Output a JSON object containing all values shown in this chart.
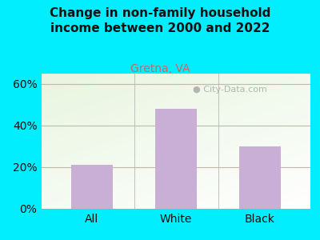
{
  "categories": [
    "All",
    "White",
    "Black"
  ],
  "values": [
    21,
    48,
    30
  ],
  "bar_color": "#c9aed6",
  "title_line1": "Change in non-family household",
  "title_line2": "income between 2000 and 2022",
  "subtitle": "Gretna, VA",
  "subtitle_color": "#cc6666",
  "title_color": "#111111",
  "ylim": [
    0,
    65
  ],
  "yticks": [
    0,
    20,
    40,
    60
  ],
  "ytick_labels": [
    "0%",
    "20%",
    "40%",
    "60%"
  ],
  "outer_bg": "#00eeff",
  "plot_bg_color": "#e8f5e0",
  "grid_color": "#ddaaaa",
  "watermark": "City-Data.com",
  "watermark_color": "#aaaaaa",
  "bar_width": 0.5
}
